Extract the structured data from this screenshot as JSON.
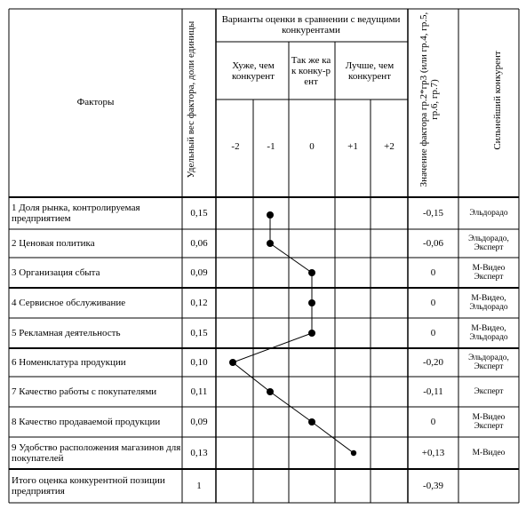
{
  "header": {
    "factors": "Факторы",
    "weight": "Удельный вес фактора, доли единицы",
    "variants": "Варианты оценки в сравнении с ведущими конкурентами",
    "worse": "Хуже, чем конкурент",
    "same": "Так же как конку-рент",
    "better": "Лучше, чем конкурент",
    "value": "Значение фактора гр.2*гр3 (или гр.4, гр.5, гр.6, гр.7)",
    "strongest": "Сильнейший конкурент",
    "scores": [
      "-2",
      "-1",
      "0",
      "+1",
      "+2"
    ]
  },
  "rows": [
    {
      "factor": "1 Доля рынка, контролируемая предприятием",
      "weight": "0,15",
      "score": -1,
      "value": "-0,15",
      "competitor": "Эльдорадо"
    },
    {
      "factor": "2 Ценовая политика",
      "weight": "0,06",
      "score": -1,
      "value": "-0,06",
      "competitor": "Эльдорадо, Эксперт"
    },
    {
      "factor": "3 Организация сбыта",
      "weight": "0,09",
      "score": 0,
      "value": "0",
      "competitor": "М-Видео Эксперт"
    },
    {
      "factor": "4 Сервисное обслуживание",
      "weight": "0,12",
      "score": 0,
      "value": "0",
      "competitor": "М-Видео, Эльдорадо"
    },
    {
      "factor": "5 Рекламная деятельность",
      "weight": "0,15",
      "score": 0,
      "value": "0",
      "competitor": "М-Видео, Эльдорадо"
    },
    {
      "factor": "6 Номенклатура продукции",
      "weight": "0,10",
      "score": -2,
      "value": "-0,20",
      "competitor": "Эльдорадо, Эксперт"
    },
    {
      "factor": "7 Качество работы с покупателями",
      "weight": "0,11",
      "score": -1,
      "value": "-0,11",
      "competitor": "Эксперт"
    },
    {
      "factor": "8 Качество продаваемой продукции",
      "weight": "0,09",
      "score": 0,
      "value": "0",
      "competitor": "М-Видео Эксперт"
    },
    {
      "factor": "9 Удобство расположения магазинов для покупателей",
      "weight": "0,13",
      "score": 1,
      "value": "+0,13",
      "competitor": "М-Видео"
    }
  ],
  "total": {
    "factor": "Итого оценка конкурентной позиции предприятия",
    "weight": "1",
    "value": "-0,39",
    "competitor": ""
  }
}
